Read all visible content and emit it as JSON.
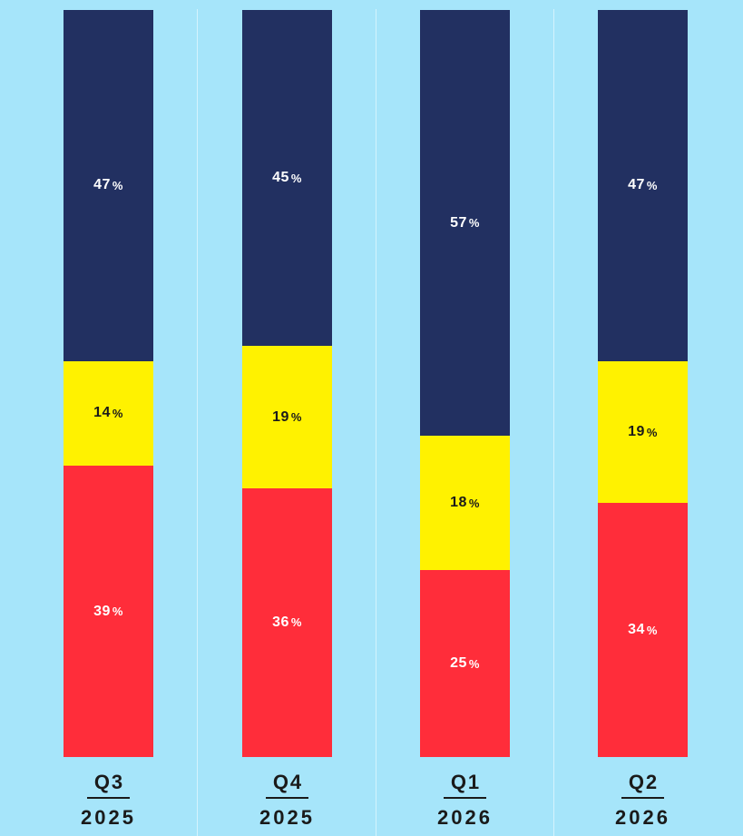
{
  "chart_data": {
    "type": "bar",
    "stacked": true,
    "normalized": true,
    "ylim": [
      0,
      100
    ],
    "grid": false,
    "legend": "none",
    "categories": [
      {
        "quarter": "Q3",
        "year": "2025"
      },
      {
        "quarter": "Q4",
        "year": "2025"
      },
      {
        "quarter": "Q1",
        "year": "2026"
      },
      {
        "quarter": "Q2",
        "year": "2026"
      }
    ],
    "series": [
      {
        "key": "red",
        "color": "#ff2d3a",
        "text_color": "#ffffff",
        "values": [
          39,
          36,
          25,
          34
        ]
      },
      {
        "key": "yellow",
        "color": "#fff200",
        "text_color": "#1a1a1a",
        "values": [
          14,
          19,
          18,
          19
        ]
      },
      {
        "key": "navy",
        "color": "#223061",
        "text_color": "#ffffff",
        "values": [
          47,
          45,
          57,
          47
        ]
      }
    ],
    "value_suffix": "%",
    "colors": {
      "background": "#a6e5fa",
      "divider": "#d4f3fd",
      "axis_text": "#1a1a1a"
    }
  }
}
